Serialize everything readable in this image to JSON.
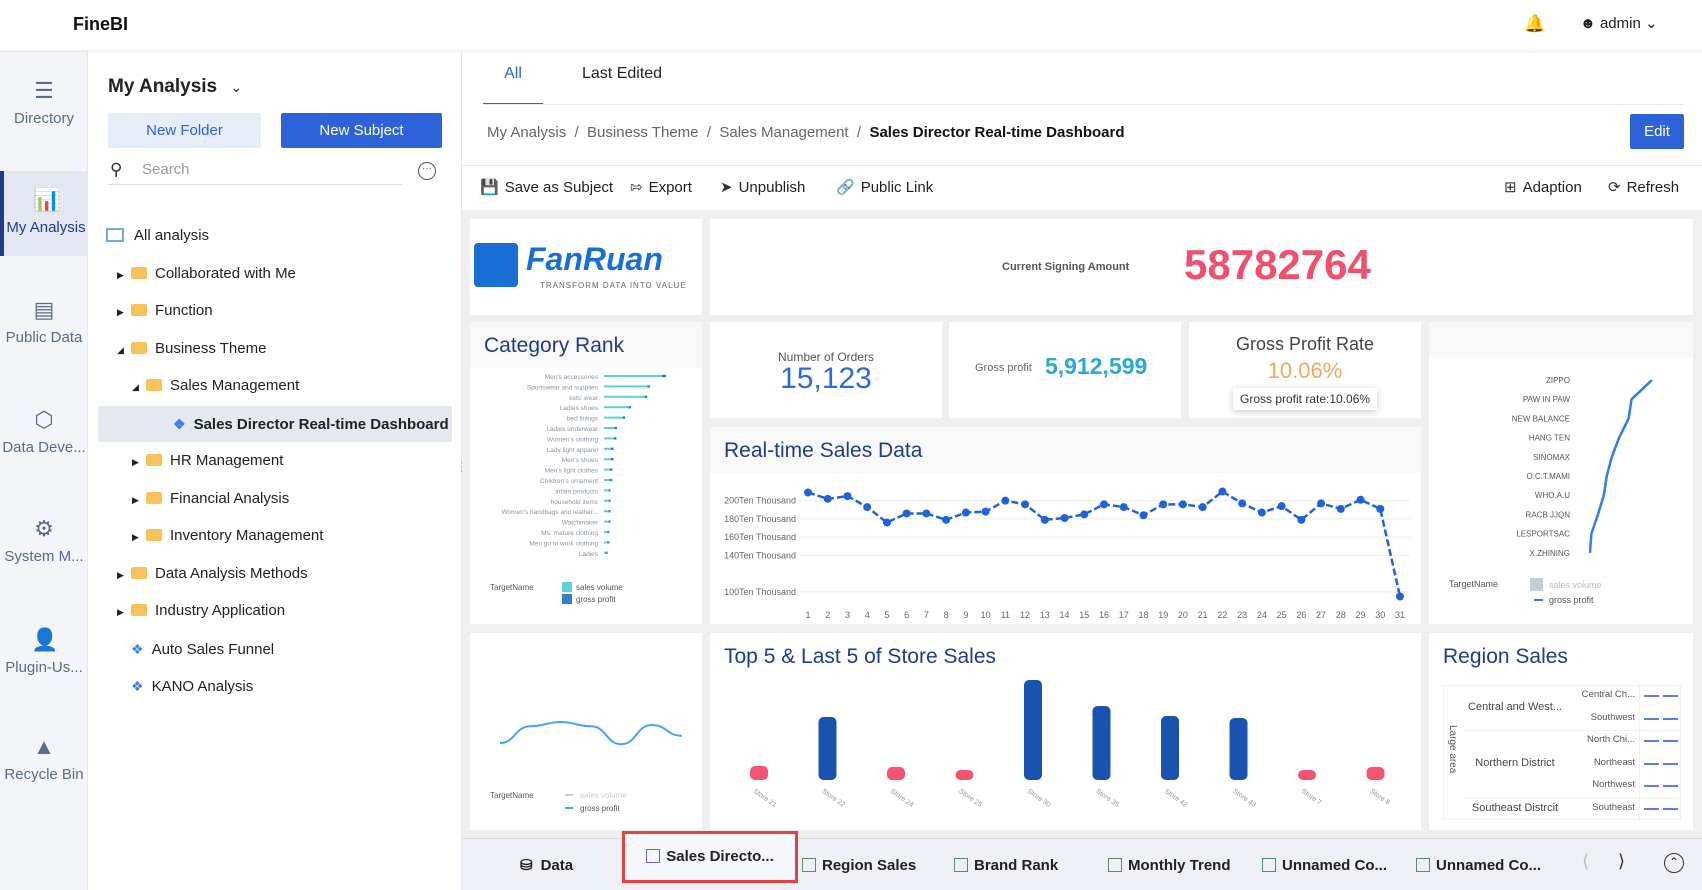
{
  "app": {
    "title": "FineBI",
    "user": "admin",
    "icons": {
      "bell": "bell-icon",
      "user": "user-icon"
    }
  },
  "rail": [
    {
      "label": "Directory",
      "icon": "directory-icon"
    },
    {
      "label": "My Analysis",
      "icon": "chart-icon",
      "active": true
    },
    {
      "label": "Public Data",
      "icon": "database-icon"
    },
    {
      "label": "Data Deve...",
      "icon": "cube-icon"
    },
    {
      "label": "System M...",
      "icon": "gear-icon"
    },
    {
      "label": "Plugin-Us...",
      "icon": "user-plugin-icon"
    },
    {
      "label": "Recycle Bin",
      "icon": "recycle-icon"
    }
  ],
  "tree": {
    "title": "My Analysis",
    "new_folder": "New Folder",
    "new_subject": "New Subject",
    "search_placeholder": "Search",
    "items": [
      {
        "label": "All analysis",
        "level": 0,
        "type": "root"
      },
      {
        "label": "Collaborated with Me",
        "level": 1,
        "type": "folder",
        "expanded": false
      },
      {
        "label": "Function",
        "level": 1,
        "type": "folder",
        "expanded": false
      },
      {
        "label": "Business Theme",
        "level": 1,
        "type": "folder",
        "expanded": true
      },
      {
        "label": "Sales Management",
        "level": 2,
        "type": "folder",
        "expanded": true
      },
      {
        "label": "Sales Director Real-time Dashboard",
        "level": 3,
        "type": "subject",
        "selected": true
      },
      {
        "label": "HR Management",
        "level": 2,
        "type": "folder",
        "expanded": false
      },
      {
        "label": "Financial Analysis",
        "level": 2,
        "type": "folder",
        "expanded": false
      },
      {
        "label": "Inventory Management",
        "level": 2,
        "type": "folder",
        "expanded": false
      },
      {
        "label": "Data Analysis Methods",
        "level": 1,
        "type": "folder",
        "expanded": false
      },
      {
        "label": "Industry Application",
        "level": 1,
        "type": "folder",
        "expanded": false
      },
      {
        "label": "Auto Sales Funnel",
        "level": 1,
        "type": "subject"
      },
      {
        "label": "KANO Analysis",
        "level": 1,
        "type": "subject"
      }
    ]
  },
  "main": {
    "tabs": [
      "All",
      "Last Edited"
    ],
    "breadcrumb": [
      "My Analysis",
      "Business Theme",
      "Sales Management",
      "Sales Director Real-time Dashboard"
    ],
    "edit": "Edit",
    "toolbar": {
      "save": "Save as Subject",
      "export": "Export",
      "unpublish": "Unpublish",
      "public_link": "Public Link",
      "adaption": "Adaption",
      "refresh": "Refresh"
    }
  },
  "dashboard": {
    "logo": {
      "brand": "FanRuan",
      "tagline": "TRANSFORM DATA INTO VALUE"
    },
    "signing": {
      "label": "Current Signing Amount",
      "value": "58782764",
      "color": "#f0506e"
    },
    "orders": {
      "label": "Number of Orders",
      "value": "15,123"
    },
    "gross_profit": {
      "label": "Gross profit",
      "value": "5,912,599"
    },
    "gross_rate": {
      "title": "Gross Profit Rate",
      "value": "10.06%",
      "tooltip": "Gross profit rate:10.06%"
    },
    "legend_title": "TargetName",
    "legend_sales": "sales volume",
    "legend_profit": "gross profit",
    "region": {
      "title": "Region Sales",
      "axis": "Large area",
      "groups": [
        {
          "name": "Central and West...",
          "subs": [
            "Central Ch...",
            "Southwest"
          ]
        },
        {
          "name": "Northern District",
          "subs": [
            "North Chi...",
            "Northeast",
            "Northwest"
          ]
        },
        {
          "name": "Southeast Distrcit",
          "subs": [
            "Southeast"
          ]
        }
      ]
    }
  },
  "chart_data": [
    {
      "type": "bar",
      "title": "Category Rank",
      "orientation": "horizontal",
      "categories": [
        "Men's accessories",
        "Sportswear and supplies",
        "kids' wear",
        "Ladies shoes",
        "bed linings",
        "Ladies underwear",
        "Women's clothing",
        "Lady light apparel",
        "Men's shoes",
        "Men's light clothes",
        "Children's ornament",
        "infant products",
        "household items",
        "Women's handbags and leather...",
        "Watchmaker",
        "Ms. mature clothing",
        "Men go to work clothing",
        "Ladies"
      ],
      "series": [
        {
          "name": "sales volume",
          "values": [
            100,
            75,
            70,
            42,
            32,
            18,
            17,
            12,
            12,
            10,
            10,
            8,
            8,
            8,
            8,
            6,
            6,
            3
          ]
        },
        {
          "name": "gross profit",
          "values": [
            4,
            2,
            2,
            2,
            2,
            2,
            2,
            2,
            2,
            2,
            2,
            1,
            1,
            1,
            1,
            1,
            1,
            1
          ]
        }
      ],
      "colors": [
        "#5cd0d8",
        "#2f80d0"
      ],
      "legend": "bottom-left"
    },
    {
      "type": "line",
      "title": "Real-time Sales Data",
      "x": [
        1,
        2,
        3,
        4,
        5,
        6,
        7,
        8,
        9,
        10,
        11,
        12,
        13,
        14,
        15,
        16,
        17,
        18,
        19,
        20,
        21,
        22,
        23,
        24,
        25,
        26,
        27,
        28,
        29,
        30,
        31
      ],
      "values": [
        209,
        202,
        205,
        193,
        176,
        186,
        186,
        179,
        187,
        188,
        200,
        196,
        179,
        181,
        185,
        196,
        193,
        184,
        196,
        196,
        193,
        210,
        197,
        187,
        194,
        179,
        197,
        191,
        201,
        191,
        95
      ],
      "yticks": [
        "100Ten Thousand",
        "140Ten Thousand",
        "160Ten Thousand",
        "180Ten Thousand",
        "200Ten Thousand"
      ],
      "ytick_values": [
        100,
        140,
        160,
        180,
        200
      ],
      "ylim": [
        90,
        215
      ],
      "color": "#1f63d8",
      "grid": true
    },
    {
      "type": "line",
      "title": "",
      "categories": [
        "ZIPPO",
        "PAW IN PAW",
        "NEW BALANCE",
        "HANG TEN",
        "SINOMAX",
        "O.C.T.MAMI",
        "WHO.A.U",
        "RACB JJQN",
        "LESPORTSAC",
        "X.ZHINING"
      ],
      "series": [
        {
          "name": "gross profit",
          "values": [
            100,
            72,
            68,
            55,
            45,
            38,
            34,
            26,
            17,
            15
          ]
        }
      ],
      "orientation": "horizontal",
      "color": "#2f7fe8",
      "legend": "bottom-left"
    },
    {
      "type": "line",
      "title": "",
      "series": [
        {
          "name": "gross profit",
          "values": [
            20,
            48,
            55,
            48,
            18,
            50,
            32
          ]
        }
      ],
      "color": "#4aa3f5",
      "legend": "bottom-left"
    },
    {
      "type": "bar",
      "title": "Top 5 & Last 5 of Store Sales",
      "categories": [
        "Store 21",
        "Store 22",
        "Store 24",
        "Store 25",
        "Store 30",
        "Store 35",
        "Store 42",
        "Store 43",
        "Store 7",
        "Store 8"
      ],
      "values": [
        14,
        63,
        13,
        10,
        100,
        74,
        64,
        62,
        9,
        13
      ],
      "colors": {
        "top": "#1a52b0",
        "last": "#f35470"
      },
      "groups": [
        "last",
        "top",
        "last",
        "last",
        "top",
        "top",
        "top",
        "top",
        "last",
        "last"
      ]
    }
  ],
  "bottom_tabs": [
    {
      "label": "Data",
      "icon": "database-icon"
    },
    {
      "label": "Sales Directo...",
      "icon": "dashboard-icon",
      "active": true
    },
    {
      "label": "Region Sales",
      "icon": "chart-icon"
    },
    {
      "label": "Brand Rank",
      "icon": "chart-icon"
    },
    {
      "label": "Monthly Trend",
      "icon": "chart-icon"
    },
    {
      "label": "Unnamed Co...",
      "icon": "chart-icon"
    },
    {
      "label": "Unnamed Co...",
      "icon": "chart-icon"
    }
  ]
}
